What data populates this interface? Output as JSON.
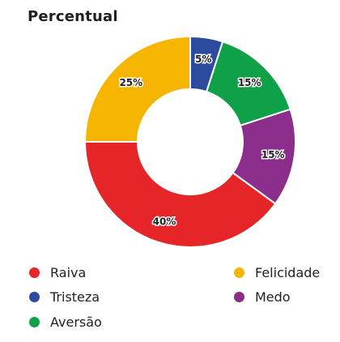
{
  "title": "Percentual",
  "chart_data": {
    "type": "donut",
    "title": "Percentual",
    "slices": [
      {
        "label": "Tristeza",
        "value": 5,
        "display": "5%",
        "color": "#2c4a9e"
      },
      {
        "label": "Aversão",
        "value": 15,
        "display": "15%",
        "color": "#10a048"
      },
      {
        "label": "Medo",
        "value": 15,
        "display": "15%",
        "color": "#8b2d8b"
      },
      {
        "label": "Raiva",
        "value": 40,
        "display": "40%",
        "color": "#e52528"
      },
      {
        "label": "Felicidade",
        "value": 25,
        "display": "25%",
        "color": "#f6b500"
      }
    ],
    "legend": [
      "Raiva",
      "Felicidade",
      "Tristeza",
      "Medo",
      "Aversão"
    ],
    "legend_placement": "bottom"
  }
}
